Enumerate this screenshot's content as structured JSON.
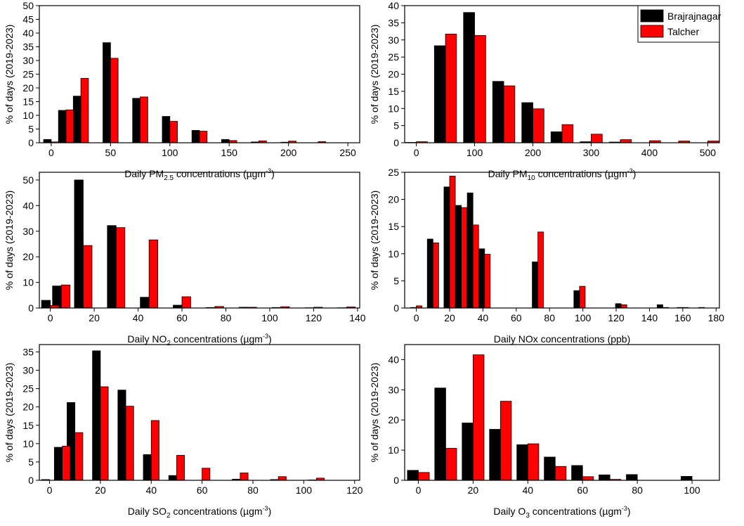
{
  "colors": {
    "series1": "#000000",
    "series2": "#ff0000",
    "axis": "#000000"
  },
  "legend": [
    "Brajrajnagar",
    "Talcher"
  ],
  "chart_data": [
    {
      "id": "pm25",
      "type": "bar",
      "xlabel": {
        "pre": "Daily PM",
        "sub": "2.5",
        "post": " concentrations (µgm",
        "sup": "-3",
        "end": ")"
      },
      "ylabel": "% of days (2019-2023)",
      "xlim": [
        -10,
        260
      ],
      "ylim": [
        0,
        50
      ],
      "xticks": [
        0,
        50,
        100,
        150,
        200,
        250
      ],
      "yticks": [
        0,
        5,
        10,
        15,
        20,
        25,
        30,
        35,
        40,
        45,
        50
      ],
      "x": [
        0,
        12.5,
        25,
        50,
        75,
        100,
        125,
        150,
        175,
        200,
        225
      ],
      "bar_width": 6.4,
      "series": [
        {
          "name": "Brajrajnagar",
          "values": [
            1.2,
            11.8,
            17.0,
            36.5,
            16.2,
            9.6,
            4.5,
            1.2,
            0.3,
            0.2,
            0.0
          ]
        },
        {
          "name": "Talcher",
          "values": [
            0.3,
            12.0,
            23.5,
            30.8,
            16.7,
            7.8,
            4.2,
            0.8,
            0.7,
            0.6,
            0.4
          ]
        }
      ]
    },
    {
      "id": "pm10",
      "type": "bar",
      "xlabel": {
        "pre": "Daily PM",
        "sub": "10",
        "post": " concentrations (µgm",
        "sup": "-3",
        "end": ")"
      },
      "ylabel": "% of days (2019-2023)",
      "xlim": [
        -20,
        520
      ],
      "ylim": [
        0,
        40
      ],
      "xticks": [
        0,
        100,
        200,
        300,
        400,
        500
      ],
      "yticks": [
        0,
        5,
        10,
        15,
        20,
        25,
        30,
        35,
        40
      ],
      "x": [
        0,
        50,
        100,
        150,
        200,
        250,
        300,
        350,
        400,
        450,
        500
      ],
      "bar_width": 19,
      "series": [
        {
          "name": "Brajrajnagar",
          "values": [
            0.1,
            28.3,
            38.0,
            17.9,
            11.7,
            3.2,
            0.3,
            0.2,
            0.0,
            0.0,
            0.0
          ]
        },
        {
          "name": "Talcher",
          "values": [
            0.3,
            31.7,
            31.3,
            16.6,
            9.9,
            5.3,
            2.5,
            0.9,
            0.6,
            0.5,
            0.5
          ]
        }
      ]
    },
    {
      "id": "no2",
      "type": "bar",
      "xlabel": {
        "pre": "Daily NO",
        "sub": "2",
        "post": " concentrations (µgm",
        "sup": "-3",
        "end": ")"
      },
      "ylabel": "% of days (2019-2023)",
      "xlim": [
        -5,
        141
      ],
      "ylim": [
        0,
        53
      ],
      "xticks": [
        0,
        20,
        40,
        60,
        80,
        100,
        120,
        140
      ],
      "yticks": [
        0,
        10,
        20,
        30,
        40,
        50
      ],
      "x": [
        0,
        5,
        15,
        30,
        45,
        60,
        75,
        90,
        105,
        120,
        135
      ],
      "bar_width": 4,
      "series": [
        {
          "name": "Brajrajnagar",
          "values": [
            3.0,
            8.6,
            50.0,
            32.2,
            4.2,
            1.1,
            0.2,
            0.3,
            0.2,
            0.1,
            0.1
          ]
        },
        {
          "name": "Talcher",
          "values": [
            1.0,
            9.0,
            24.4,
            31.4,
            26.6,
            4.4,
            0.6,
            0.3,
            0.5,
            0.3,
            0.4
          ]
        }
      ]
    },
    {
      "id": "nox",
      "type": "bar",
      "xlabel": {
        "pre": "Daily NOx concentrations (ppb)",
        "sub": "",
        "post": "",
        "sup": "",
        "end": ""
      },
      "ylabel": "% of days (2019-2023)",
      "xlim": [
        -7,
        182
      ],
      "ylim": [
        0,
        25
      ],
      "xticks": [
        0,
        20,
        40,
        60,
        80,
        100,
        120,
        140,
        160,
        180
      ],
      "yticks": [
        0,
        5,
        10,
        15,
        20,
        25
      ],
      "x": [
        0,
        10,
        20,
        27,
        34,
        41,
        48,
        55,
        73,
        98,
        123,
        148,
        160,
        173
      ],
      "bar_width": 3.4,
      "series": [
        {
          "name": "Brajrajnagar",
          "values": [
            0.1,
            12.7,
            22.3,
            18.9,
            21.2,
            10.9,
            0.0,
            0.0,
            8.5,
            3.2,
            0.8,
            0.6,
            0.1,
            0.1
          ]
        },
        {
          "name": "Talcher",
          "values": [
            0.4,
            12.0,
            24.3,
            18.5,
            15.3,
            9.9,
            0.0,
            0.0,
            14.0,
            4.0,
            0.6,
            0.1,
            0.1,
            0.0
          ]
        }
      ]
    },
    {
      "id": "so2",
      "type": "bar",
      "xlabel": {
        "pre": "Daily SO",
        "sub": "2",
        "post": " concentrations (µgm",
        "sup": "-3",
        "end": ")"
      },
      "ylabel": "% of days (2019-2023)",
      "xlim": [
        -4,
        122
      ],
      "ylim": [
        0,
        37
      ],
      "xticks": [
        0,
        20,
        40,
        60,
        80,
        100,
        120
      ],
      "yticks": [
        0,
        5,
        10,
        15,
        20,
        25,
        30,
        35
      ],
      "x": [
        0,
        5,
        10,
        20,
        30,
        40,
        50,
        60,
        75,
        90,
        105
      ],
      "bar_width": 3.1,
      "series": [
        {
          "name": "Brajrajnagar",
          "values": [
            0.2,
            9.0,
            21.2,
            35.3,
            24.6,
            7.0,
            1.3,
            0.0,
            0.3,
            0.2,
            0.1
          ]
        },
        {
          "name": "Talcher",
          "values": [
            0.0,
            9.3,
            13.0,
            25.5,
            20.2,
            16.3,
            6.8,
            3.3,
            2.0,
            1.0,
            0.6
          ]
        }
      ]
    },
    {
      "id": "o3",
      "type": "bar",
      "xlabel": {
        "pre": "Daily O",
        "sub": "3",
        "post": " concentrations (µgm",
        "sup": "-3",
        "end": ")"
      },
      "ylabel": "% of days (2019-2023)",
      "xlim": [
        -5,
        110
      ],
      "ylim": [
        0,
        45
      ],
      "xticks": [
        0,
        20,
        40,
        60,
        80,
        100
      ],
      "yticks": [
        0,
        10,
        20,
        30,
        40
      ],
      "x": [
        0,
        10,
        20,
        30,
        40,
        50,
        60,
        70,
        80,
        90,
        100
      ],
      "bar_width": 4,
      "series": [
        {
          "name": "Brajrajnagar",
          "values": [
            3.3,
            30.6,
            19.0,
            16.9,
            11.8,
            7.7,
            4.9,
            1.8,
            1.9,
            0.0,
            1.3
          ]
        },
        {
          "name": "Talcher",
          "values": [
            2.6,
            10.6,
            41.6,
            26.2,
            12.1,
            4.6,
            1.2,
            0.3,
            0.0,
            0.0,
            0.0
          ]
        }
      ]
    }
  ]
}
